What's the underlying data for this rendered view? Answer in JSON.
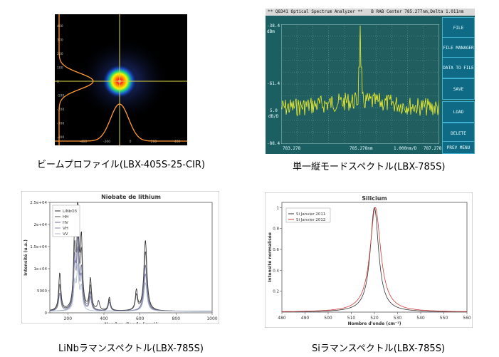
{
  "captions": {
    "beam": "ビームプロファイル(LBX-405S-25-CIR)",
    "single_mode": "単一縦モードスペクトル(LBX-785S)",
    "linbo": "LiNbラマンスペクトル(LBX-785S)",
    "si": "Siラマンスペクトル(LBX-785S)"
  },
  "beam_profile": {
    "y_ticks": [
      "400",
      "300",
      "200",
      "100",
      "0",
      "-100",
      "-200",
      "-300",
      "-400"
    ],
    "x_ticks": [
      "-400",
      "-200",
      "0",
      "200",
      "400"
    ]
  },
  "osa": {
    "header": "** Q8341 Optical Spectrum Analyzer **",
    "header_right": "B RAB  Center 785.277nm,Delta 1.011nm",
    "ref_level": "-38.4",
    "ref_unit": "dBm",
    "level_mid": "-61.4",
    "scale_value": "5.0",
    "scale_unit": "dB/D",
    "level_bottom": "-88.4",
    "x_left": "783.278",
    "x_center": "785.278nm",
    "x_span": "1.000nm/D",
    "x_right": "787.278",
    "buttons": [
      "FILE",
      "FILE MANAGER",
      "DATA TO FILE",
      "SAVE",
      "LOAD",
      "DELETE",
      "PREV MENU"
    ],
    "colors": {
      "bg": "#1c5f63",
      "grid": "#7fb0b0",
      "trace": "#f3f32a",
      "button": "#0f6a86"
    }
  },
  "chart_data": [
    {
      "type": "line",
      "title": "Niobate de lithium",
      "xlabel": "Nombre d'onde (cm⁻¹)",
      "ylabel": "Intensité (u.a.)",
      "xlim": [
        100,
        1000
      ],
      "ylim": [
        0,
        25000
      ],
      "x_ticks": [
        "200",
        "400",
        "600",
        "800",
        "1000"
      ],
      "y_ticks": [
        "0",
        "5000",
        "1e+04",
        "1.5e+04",
        "2e+04",
        "2.5e+04"
      ],
      "legend_position": "top-left",
      "series": [
        {
          "name": "LiNbO3",
          "color": "#2a2a2a",
          "peaks": [
            [
              155,
              8500
            ],
            [
              238,
              17000
            ],
            [
              255,
              22500
            ],
            [
              275,
              15000
            ],
            [
              325,
              7000
            ],
            [
              370,
              2000
            ],
            [
              430,
              3000
            ],
            [
              580,
              4500
            ],
            [
              630,
              16000
            ]
          ]
        },
        {
          "name": "HH",
          "color": "#555555",
          "peaks": [
            [
              155,
              6000
            ],
            [
              238,
              13000
            ],
            [
              255,
              18500
            ],
            [
              275,
              12000
            ],
            [
              325,
              5500
            ],
            [
              430,
              2500
            ],
            [
              580,
              3500
            ],
            [
              630,
              13500
            ]
          ]
        },
        {
          "name": "HV",
          "color": "#6b6b9a",
          "peaks": [
            [
              155,
              4000
            ],
            [
              238,
              11000
            ],
            [
              255,
              15000
            ],
            [
              275,
              8500
            ],
            [
              325,
              4000
            ],
            [
              430,
              2000
            ],
            [
              630,
              10500
            ]
          ]
        },
        {
          "name": "VH",
          "color": "#8a8ab0",
          "peaks": [
            [
              238,
              9500
            ],
            [
              255,
              12500
            ],
            [
              275,
              7000
            ],
            [
              325,
              3000
            ],
            [
              630,
              8500
            ]
          ]
        },
        {
          "name": "VV",
          "color": "#a8b8c8",
          "peaks": [
            [
              238,
              6000
            ],
            [
              255,
              9500
            ],
            [
              275,
              5000
            ],
            [
              630,
              6500
            ]
          ]
        }
      ]
    },
    {
      "type": "line",
      "title": "Silicium",
      "xlabel": "Nombre d'onde (cm⁻¹)",
      "ylabel": "Intensité normalisée",
      "xlim": [
        480,
        560
      ],
      "ylim": [
        0,
        1.05
      ],
      "x_ticks": [
        "480",
        "490",
        "500",
        "510",
        "520",
        "530",
        "540",
        "550",
        "560"
      ],
      "y_ticks": [
        "0.2",
        "0.4",
        "0.6",
        "0.8",
        "1"
      ],
      "legend_position": "top-left",
      "series": [
        {
          "name": "Si Janvier 2011",
          "color": "#333333",
          "center": 520,
          "hwhm": 2.2
        },
        {
          "name": "Si Janvier 2012",
          "color": "#d23a3a",
          "center": 520.4,
          "hwhm": 2.8
        }
      ]
    }
  ]
}
